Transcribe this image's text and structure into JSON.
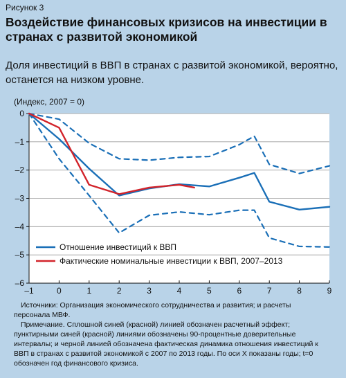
{
  "figure_label": "Рисунок 3",
  "title": "Воздействие финансовых кризисов на инвестиции в странах с развитой экономикой",
  "subtitle": "Доля инвестиций в ВВП в странах с развитой экономикой, вероятно, останется на низком уровне.",
  "units": "(Индекс, 2007 = 0)",
  "colors": {
    "background": "#b9d3e8",
    "plot_bg": "#ffffff",
    "blue": "#1a6fb7",
    "red": "#d2232a"
  },
  "chart_data": {
    "type": "line",
    "xlim": [
      -1,
      9
    ],
    "ylim": [
      -6,
      0
    ],
    "x_ticks": [
      -1,
      0,
      1,
      2,
      3,
      4,
      5,
      6,
      7,
      8,
      9
    ],
    "y_ticks": [
      0,
      -1,
      -2,
      -3,
      -4,
      -5,
      -6
    ],
    "x_tick_labels": [
      "–1",
      "0",
      "1",
      "2",
      "3",
      "4",
      "5",
      "6",
      "7",
      "8",
      "9"
    ],
    "y_tick_labels": [
      "0",
      "–1",
      "–2",
      "–3",
      "–4",
      "–5",
      "–6"
    ],
    "grid": "horizontal",
    "legend_position": "lower-left",
    "series": [
      {
        "name": "Отношение инвестиций к ВВП",
        "color": "#1a6fb7",
        "style": "solid",
        "in_legend": true,
        "x": [
          -1,
          0,
          1,
          2,
          3,
          4,
          5,
          6,
          6.5,
          7,
          8,
          9
        ],
        "y": [
          0,
          -0.9,
          -1.95,
          -2.9,
          -2.65,
          -2.5,
          -2.58,
          -2.27,
          -2.1,
          -3.12,
          -3.4,
          -3.3
        ]
      },
      {
        "name": "Фактические номинальные инвестиции к ВВП, 2007–2013",
        "color": "#d2232a",
        "style": "solid",
        "in_legend": true,
        "x": [
          -1,
          0,
          1,
          2,
          3,
          4,
          4.5
        ],
        "y": [
          0,
          -0.5,
          -2.52,
          -2.85,
          -2.62,
          -2.52,
          -2.62
        ]
      },
      {
        "name": "",
        "color": "#1a6fb7",
        "style": "dashed",
        "in_legend": false,
        "x": [
          -1,
          0,
          1,
          2,
          3,
          4,
          5,
          6,
          6.5,
          7,
          8,
          9
        ],
        "y": [
          0,
          -0.2,
          -1.05,
          -1.6,
          -1.65,
          -1.55,
          -1.52,
          -1.1,
          -0.8,
          -1.8,
          -2.12,
          -1.85
        ]
      },
      {
        "name": "",
        "color": "#1a6fb7",
        "style": "dashed",
        "in_legend": false,
        "x": [
          -1,
          0,
          1,
          2,
          3,
          4,
          5,
          6,
          6.5,
          7,
          8,
          9
        ],
        "y": [
          0,
          -1.6,
          -2.9,
          -4.22,
          -3.6,
          -3.48,
          -3.58,
          -3.42,
          -3.42,
          -4.4,
          -4.7,
          -4.72
        ]
      }
    ]
  },
  "notes": {
    "sources": "Источники: Организация экономического сотрудничества и развития; и расчеты персонала МВФ.",
    "note": "Примечание. Сплошной синей (красной) линией обозначен расчетный эффект; пунктирными синей (красной) линиями обозначены 90-процентные доверительные интервалы; и черной линией обозначена фактическая динамика отношения инвестиций к ВВП в странах с развитой экономикой с 2007 по 2013 годы. По оси X показаны годы; t=0 обозначен год финансового кризиса."
  }
}
